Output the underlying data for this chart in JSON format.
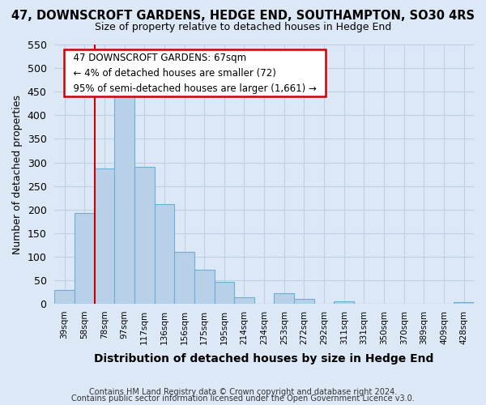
{
  "title": "47, DOWNSCROFT GARDENS, HEDGE END, SOUTHAMPTON, SO30 4RS",
  "subtitle": "Size of property relative to detached houses in Hedge End",
  "xlabel": "Distribution of detached houses by size in Hedge End",
  "ylabel": "Number of detached properties",
  "bin_labels": [
    "39sqm",
    "58sqm",
    "78sqm",
    "97sqm",
    "117sqm",
    "136sqm",
    "156sqm",
    "175sqm",
    "195sqm",
    "214sqm",
    "234sqm",
    "253sqm",
    "272sqm",
    "292sqm",
    "311sqm",
    "331sqm",
    "350sqm",
    "370sqm",
    "389sqm",
    "409sqm",
    "428sqm"
  ],
  "bar_heights": [
    30,
    193,
    287,
    460,
    290,
    212,
    110,
    73,
    47,
    14,
    0,
    22,
    10,
    0,
    6,
    0,
    0,
    0,
    0,
    0,
    4
  ],
  "bar_color": "#b8d0e8",
  "bar_edge_color": "#6baed6",
  "marker_color": "#cc0000",
  "ylim": [
    0,
    550
  ],
  "yticks": [
    0,
    50,
    100,
    150,
    200,
    250,
    300,
    350,
    400,
    450,
    500,
    550
  ],
  "annotation_title": "47 DOWNSCROFT GARDENS: 67sqm",
  "annotation_line1": "← 4% of detached houses are smaller (72)",
  "annotation_line2": "95% of semi-detached houses are larger (1,661) →",
  "footnote1": "Contains HM Land Registry data © Crown copyright and database right 2024.",
  "footnote2": "Contains public sector information licensed under the Open Government Licence v3.0.",
  "bg_color": "#dce8f5",
  "plot_bg_color": "#dce8f5",
  "grid_color": "#c0d0e4"
}
